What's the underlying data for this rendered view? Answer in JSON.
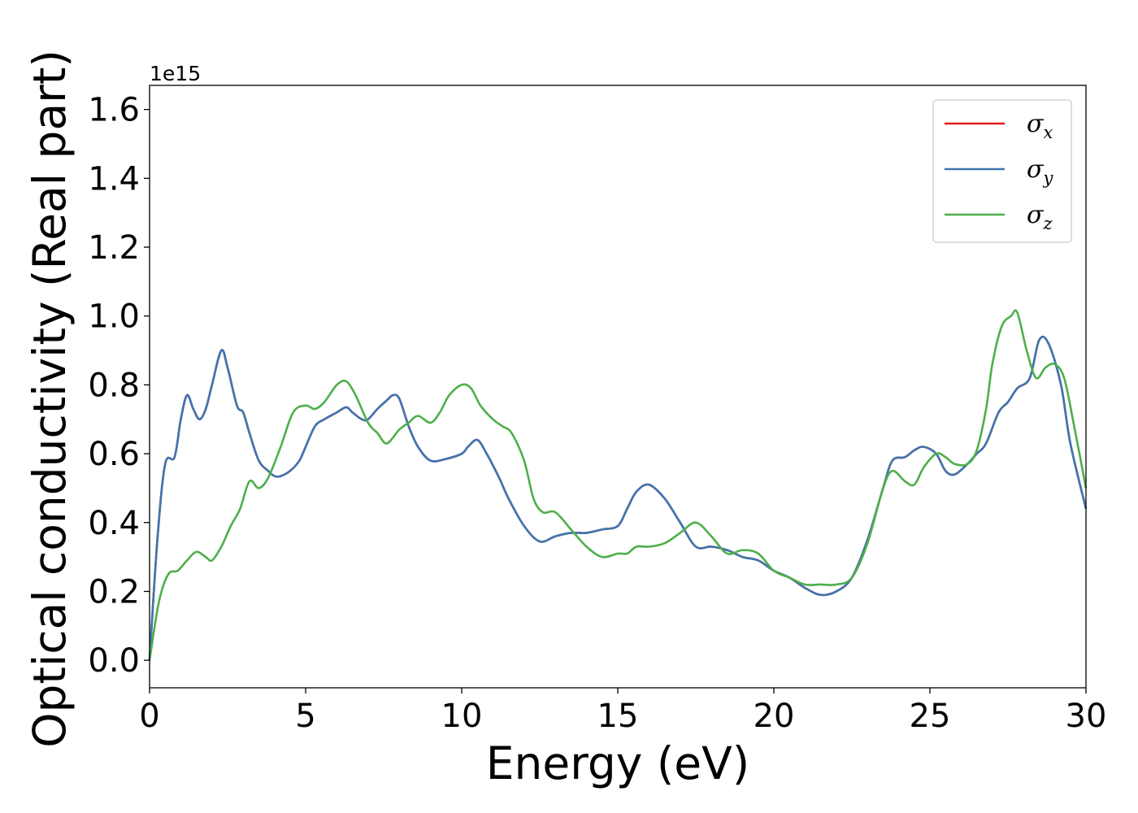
{
  "chart_data": {
    "type": "line",
    "xlabel": "Energy (eV)",
    "ylabel": "Optical conductivity (Real part)",
    "y_scale_label": "1e15",
    "xlim": [
      0,
      30
    ],
    "ylim": [
      -0.08,
      1.67
    ],
    "xticks": [
      0,
      5,
      10,
      15,
      20,
      25,
      30
    ],
    "xtick_labels": [
      "0",
      "5",
      "10",
      "15",
      "20",
      "25",
      "30"
    ],
    "yticks": [
      0.0,
      0.2,
      0.4,
      0.6,
      0.8,
      1.0,
      1.2,
      1.4,
      1.6
    ],
    "ytick_labels": [
      "0.0",
      "0.2",
      "0.4",
      "0.6",
      "0.8",
      "1.0",
      "1.2",
      "1.4",
      "1.6"
    ],
    "grid": false,
    "legend_position": "top-right",
    "series": [
      {
        "name": "σx",
        "symbol": "σ",
        "subscript": "x",
        "color": "#e41a1c",
        "x": [
          0,
          0.25,
          0.5,
          0.8,
          1.0,
          1.2,
          1.4,
          1.6,
          1.8,
          2.0,
          2.3,
          2.5,
          2.8,
          3.0,
          3.2,
          3.5,
          3.8,
          4.0,
          4.2,
          4.5,
          4.8,
          5.0,
          5.3,
          5.6,
          6.0,
          6.3,
          6.5,
          6.8,
          7.0,
          7.3,
          7.6,
          7.8,
          8.0,
          8.3,
          8.6,
          9.0,
          9.5,
          10.0,
          10.2,
          10.5,
          10.8,
          11.2,
          11.5,
          12.0,
          12.5,
          13.0,
          13.5,
          14.0,
          14.5,
          15.0,
          15.3,
          15.6,
          16.0,
          16.5,
          17.0,
          17.5,
          18.0,
          18.5,
          19.0,
          19.5,
          20.0,
          20.5,
          21.0,
          21.5,
          22.0,
          22.5,
          23.0,
          23.5,
          23.8,
          24.2,
          24.5,
          24.8,
          25.2,
          25.5,
          25.8,
          26.2,
          26.5,
          26.8,
          27.2,
          27.5,
          27.8,
          28.2,
          28.5,
          28.8,
          29.2,
          29.5,
          30.0
        ],
        "y": [
          0.0,
          0.35,
          0.57,
          0.59,
          0.7,
          0.77,
          0.73,
          0.7,
          0.73,
          0.8,
          0.9,
          0.85,
          0.74,
          0.72,
          0.66,
          0.58,
          0.55,
          0.535,
          0.535,
          0.55,
          0.58,
          0.62,
          0.68,
          0.7,
          0.72,
          0.735,
          0.72,
          0.7,
          0.7,
          0.73,
          0.755,
          0.77,
          0.76,
          0.68,
          0.62,
          0.58,
          0.585,
          0.6,
          0.62,
          0.64,
          0.6,
          0.53,
          0.47,
          0.39,
          0.345,
          0.36,
          0.37,
          0.37,
          0.38,
          0.39,
          0.44,
          0.49,
          0.51,
          0.47,
          0.4,
          0.33,
          0.33,
          0.32,
          0.3,
          0.29,
          0.26,
          0.24,
          0.21,
          0.19,
          0.2,
          0.24,
          0.35,
          0.5,
          0.58,
          0.59,
          0.61,
          0.62,
          0.6,
          0.55,
          0.54,
          0.57,
          0.6,
          0.63,
          0.72,
          0.75,
          0.79,
          0.82,
          0.93,
          0.92,
          0.8,
          0.63,
          0.44
        ]
      },
      {
        "name": "σy",
        "symbol": "σ",
        "subscript": "y",
        "color": "#3e75b1",
        "x": [
          0,
          0.25,
          0.5,
          0.8,
          1.0,
          1.2,
          1.4,
          1.6,
          1.8,
          2.0,
          2.3,
          2.5,
          2.8,
          3.0,
          3.2,
          3.5,
          3.8,
          4.0,
          4.2,
          4.5,
          4.8,
          5.0,
          5.3,
          5.6,
          6.0,
          6.3,
          6.5,
          6.8,
          7.0,
          7.3,
          7.6,
          7.8,
          8.0,
          8.3,
          8.6,
          9.0,
          9.5,
          10.0,
          10.2,
          10.5,
          10.8,
          11.2,
          11.5,
          12.0,
          12.5,
          13.0,
          13.5,
          14.0,
          14.5,
          15.0,
          15.3,
          15.6,
          16.0,
          16.5,
          17.0,
          17.5,
          18.0,
          18.5,
          19.0,
          19.5,
          20.0,
          20.5,
          21.0,
          21.5,
          22.0,
          22.5,
          23.0,
          23.5,
          23.8,
          24.2,
          24.5,
          24.8,
          25.2,
          25.5,
          25.8,
          26.2,
          26.5,
          26.8,
          27.2,
          27.5,
          27.8,
          28.2,
          28.5,
          28.8,
          29.2,
          29.5,
          30.0
        ],
        "y": [
          0.0,
          0.35,
          0.57,
          0.59,
          0.7,
          0.77,
          0.73,
          0.7,
          0.73,
          0.8,
          0.9,
          0.85,
          0.74,
          0.72,
          0.66,
          0.58,
          0.55,
          0.535,
          0.535,
          0.55,
          0.58,
          0.62,
          0.68,
          0.7,
          0.72,
          0.735,
          0.72,
          0.7,
          0.7,
          0.73,
          0.755,
          0.77,
          0.76,
          0.68,
          0.62,
          0.58,
          0.585,
          0.6,
          0.62,
          0.64,
          0.6,
          0.53,
          0.47,
          0.39,
          0.345,
          0.36,
          0.37,
          0.37,
          0.38,
          0.39,
          0.44,
          0.49,
          0.51,
          0.47,
          0.4,
          0.33,
          0.33,
          0.32,
          0.3,
          0.29,
          0.26,
          0.24,
          0.21,
          0.19,
          0.2,
          0.24,
          0.35,
          0.5,
          0.58,
          0.59,
          0.61,
          0.62,
          0.6,
          0.55,
          0.54,
          0.57,
          0.6,
          0.63,
          0.72,
          0.75,
          0.79,
          0.82,
          0.93,
          0.92,
          0.8,
          0.63,
          0.44
        ]
      },
      {
        "name": "σz",
        "symbol": "σ",
        "subscript": "z",
        "color": "#4daf4a",
        "x": [
          0,
          0.3,
          0.6,
          0.9,
          1.2,
          1.5,
          1.8,
          2.0,
          2.3,
          2.6,
          2.9,
          3.2,
          3.5,
          3.8,
          4.2,
          4.6,
          5.0,
          5.3,
          5.6,
          6.0,
          6.3,
          6.6,
          7.0,
          7.3,
          7.6,
          8.0,
          8.3,
          8.6,
          9.0,
          9.3,
          9.6,
          10.0,
          10.3,
          10.6,
          11.0,
          11.3,
          11.6,
          12.0,
          12.3,
          12.6,
          13.0,
          13.5,
          14.0,
          14.5,
          15.0,
          15.3,
          15.6,
          16.0,
          16.5,
          17.0,
          17.5,
          18.0,
          18.5,
          19.0,
          19.5,
          20.0,
          20.5,
          21.0,
          21.5,
          22.0,
          22.5,
          23.0,
          23.5,
          23.8,
          24.2,
          24.5,
          24.8,
          25.2,
          25.5,
          25.8,
          26.2,
          26.5,
          26.8,
          27.0,
          27.3,
          27.6,
          27.8,
          28.1,
          28.4,
          28.7,
          29.0,
          29.3,
          29.6,
          30.0
        ],
        "y": [
          0.0,
          0.17,
          0.25,
          0.26,
          0.29,
          0.315,
          0.3,
          0.29,
          0.33,
          0.39,
          0.44,
          0.52,
          0.5,
          0.53,
          0.62,
          0.72,
          0.74,
          0.73,
          0.75,
          0.8,
          0.81,
          0.77,
          0.69,
          0.66,
          0.63,
          0.67,
          0.69,
          0.71,
          0.69,
          0.72,
          0.77,
          0.8,
          0.79,
          0.74,
          0.7,
          0.68,
          0.66,
          0.58,
          0.47,
          0.43,
          0.43,
          0.38,
          0.33,
          0.3,
          0.31,
          0.31,
          0.33,
          0.33,
          0.34,
          0.37,
          0.4,
          0.36,
          0.31,
          0.32,
          0.31,
          0.26,
          0.24,
          0.22,
          0.22,
          0.22,
          0.24,
          0.34,
          0.5,
          0.55,
          0.52,
          0.51,
          0.56,
          0.6,
          0.59,
          0.57,
          0.57,
          0.61,
          0.73,
          0.86,
          0.97,
          1.0,
          1.01,
          0.9,
          0.82,
          0.85,
          0.86,
          0.82,
          0.69,
          0.5
        ]
      }
    ]
  }
}
